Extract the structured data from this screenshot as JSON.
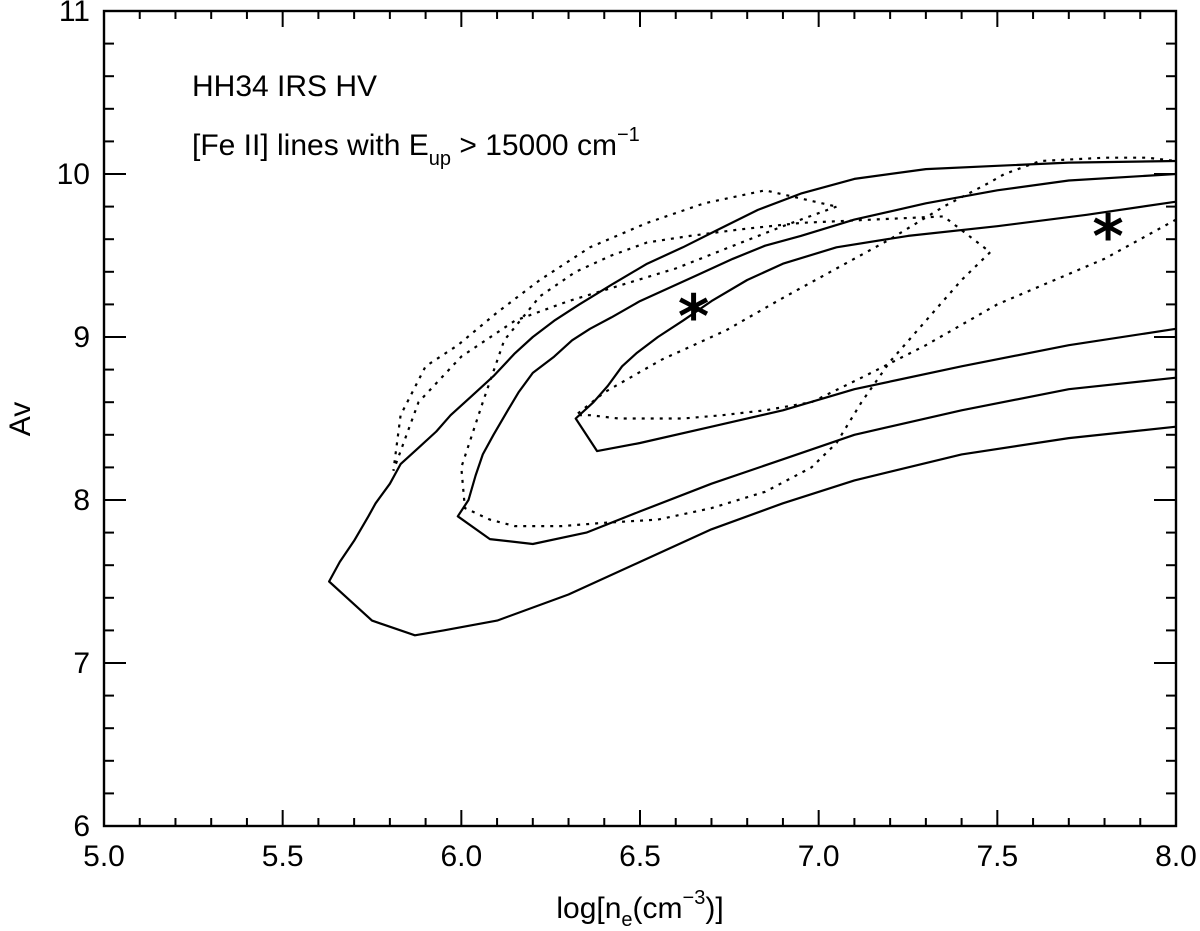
{
  "chart_data": {
    "type": "line",
    "xlabel": {
      "base": "log[n",
      "sub": "e",
      "mid": "(cm",
      "sup": "−3",
      "end": ")]"
    },
    "ylabel": "Av",
    "xlim": [
      5.0,
      8.0
    ],
    "ylim": [
      6,
      11
    ],
    "x_ticks": [
      "5.0",
      "5.5",
      "6.0",
      "6.5",
      "7.0",
      "7.5",
      "8.0"
    ],
    "y_ticks": [
      "6",
      "7",
      "8",
      "9",
      "10",
      "11"
    ],
    "annotations": {
      "object": "HH34 IRS HV",
      "lines_prefix": "[Fe II] lines with E",
      "lines_sub": "up",
      "lines_mid": " > 15000 cm",
      "lines_sup": "−1"
    },
    "markers": [
      {
        "x": 6.65,
        "y": 9.16,
        "symbol": "*"
      },
      {
        "x": 7.81,
        "y": 9.65,
        "symbol": "*"
      }
    ],
    "series": [
      {
        "style": "solid",
        "x": [
          8.0,
          7.7,
          7.4,
          7.1,
          6.9,
          6.7,
          6.5,
          6.3,
          6.1,
          5.95,
          5.87,
          5.75,
          5.68,
          5.63,
          5.66,
          5.7,
          5.74,
          5.76,
          5.8,
          5.83,
          5.88,
          5.93,
          5.97,
          6.03,
          6.09,
          6.15,
          6.2,
          6.26,
          6.33,
          6.42,
          6.52,
          6.62,
          6.72,
          6.83,
          6.95,
          7.1,
          7.3,
          7.5,
          7.7,
          8.0
        ],
        "y": [
          8.45,
          8.38,
          8.28,
          8.12,
          7.98,
          7.82,
          7.62,
          7.42,
          7.26,
          7.2,
          7.17,
          7.26,
          7.4,
          7.5,
          7.62,
          7.75,
          7.9,
          7.98,
          8.1,
          8.22,
          8.32,
          8.42,
          8.52,
          8.64,
          8.76,
          8.9,
          9.0,
          9.1,
          9.2,
          9.32,
          9.45,
          9.55,
          9.66,
          9.78,
          9.88,
          9.97,
          10.03,
          10.05,
          10.07,
          10.08
        ]
      },
      {
        "style": "solid",
        "x": [
          8.0,
          7.7,
          7.4,
          7.1,
          6.9,
          6.7,
          6.5,
          6.35,
          6.2,
          6.08,
          5.99,
          6.02,
          6.04,
          6.06,
          6.09,
          6.13,
          6.16,
          6.2,
          6.26,
          6.31,
          6.36,
          6.42,
          6.5,
          6.58,
          6.66,
          6.76,
          6.85,
          6.95,
          7.1,
          7.3,
          7.5,
          7.7,
          8.0
        ],
        "y": [
          8.75,
          8.68,
          8.55,
          8.4,
          8.25,
          8.1,
          7.93,
          7.8,
          7.73,
          7.76,
          7.9,
          8.0,
          8.15,
          8.28,
          8.4,
          8.55,
          8.66,
          8.78,
          8.88,
          8.98,
          9.05,
          9.12,
          9.22,
          9.3,
          9.38,
          9.48,
          9.56,
          9.62,
          9.72,
          9.82,
          9.9,
          9.96,
          10.0
        ]
      },
      {
        "style": "solid",
        "x": [
          8.0,
          7.7,
          7.4,
          7.1,
          6.9,
          6.7,
          6.5,
          6.38,
          6.32,
          6.37,
          6.41,
          6.45,
          6.49,
          6.55,
          6.62,
          6.7,
          6.8,
          6.9,
          7.05,
          7.25,
          7.5,
          7.75,
          8.0
        ],
        "y": [
          9.05,
          8.95,
          8.82,
          8.68,
          8.55,
          8.45,
          8.35,
          8.3,
          8.5,
          8.6,
          8.7,
          8.82,
          8.9,
          9.0,
          9.1,
          9.22,
          9.35,
          9.45,
          9.55,
          9.62,
          9.68,
          9.75,
          9.83
        ]
      },
      {
        "style": "dotted",
        "x": [
          8.0,
          7.8,
          7.5,
          7.3,
          7.12,
          6.98,
          6.85,
          6.73,
          6.62,
          6.52,
          6.44,
          6.36,
          6.32,
          6.4,
          6.56,
          6.74,
          6.9,
          7.05,
          7.2,
          7.35,
          7.48,
          7.52,
          7.62,
          7.8,
          7.92,
          8.0
        ],
        "y": [
          9.72,
          9.48,
          9.2,
          8.95,
          8.75,
          8.6,
          8.55,
          8.52,
          8.5,
          8.5,
          8.5,
          8.52,
          8.52,
          8.66,
          8.86,
          9.04,
          9.24,
          9.42,
          9.6,
          9.8,
          9.95,
          10.0,
          10.08,
          10.1,
          10.1,
          10.08
        ]
      },
      {
        "style": "dotted",
        "x": [
          7.48,
          7.4,
          7.3,
          7.2,
          7.12,
          7.05,
          6.98,
          6.85,
          6.7,
          6.55,
          6.4,
          6.28,
          6.15,
          6.08,
          6.01,
          6.0,
          6.06,
          6.12,
          6.22,
          6.32,
          6.42,
          6.52,
          6.64,
          6.78,
          6.95,
          7.15,
          7.35,
          7.48
        ],
        "y": [
          9.52,
          9.35,
          9.1,
          8.85,
          8.6,
          8.35,
          8.2,
          8.05,
          7.95,
          7.88,
          7.86,
          7.84,
          7.84,
          7.88,
          7.95,
          8.2,
          8.6,
          8.98,
          9.25,
          9.4,
          9.5,
          9.58,
          9.62,
          9.66,
          9.7,
          9.72,
          9.74,
          9.52
        ]
      },
      {
        "style": "dotted",
        "x": [
          7.05,
          6.9,
          6.75,
          6.6,
          6.45,
          6.3,
          6.15,
          6.0,
          5.88,
          5.83,
          5.81,
          5.83,
          5.9,
          5.99,
          6.1,
          6.22,
          6.36,
          6.52,
          6.68,
          6.85,
          7.05
        ],
        "y": [
          9.8,
          9.68,
          9.55,
          9.42,
          9.32,
          9.22,
          9.1,
          8.88,
          8.6,
          8.3,
          8.18,
          8.52,
          8.82,
          8.95,
          9.15,
          9.35,
          9.55,
          9.7,
          9.82,
          9.9,
          9.8
        ]
      }
    ]
  }
}
